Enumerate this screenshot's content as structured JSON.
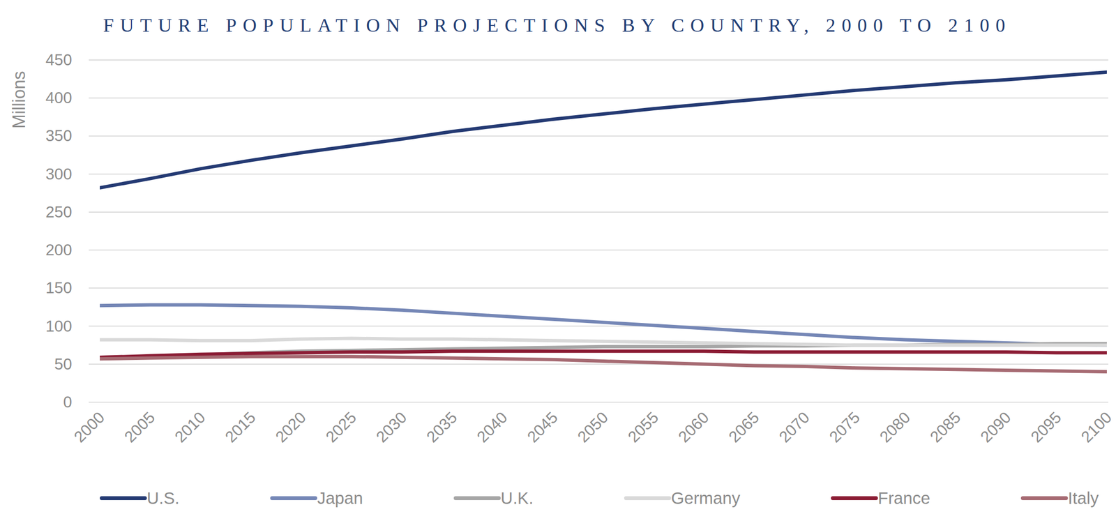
{
  "chart_data": {
    "type": "line",
    "title": "FUTURE POPULATION PROJECTIONS BY COUNTRY, 2000 TO 2100",
    "y_label": "Millions",
    "x": [
      2000,
      2005,
      2010,
      2015,
      2020,
      2025,
      2030,
      2035,
      2040,
      2045,
      2050,
      2055,
      2060,
      2065,
      2070,
      2075,
      2080,
      2085,
      2090,
      2095,
      2100
    ],
    "xlim": [
      2000,
      2100
    ],
    "xticks": [
      2000,
      2005,
      2010,
      2015,
      2020,
      2025,
      2030,
      2035,
      2040,
      2045,
      2050,
      2055,
      2060,
      2065,
      2070,
      2075,
      2080,
      2085,
      2090,
      2095,
      2100
    ],
    "ylim": [
      0,
      450
    ],
    "yticks": [
      0,
      50,
      100,
      150,
      200,
      250,
      300,
      350,
      400,
      450
    ],
    "grid": true,
    "legend": "bottom",
    "series": [
      {
        "name": "U.S.",
        "color": "#243a73",
        "values": [
          282,
          294,
          307,
          318,
          328,
          337,
          346,
          356,
          364,
          372,
          379,
          386,
          392,
          398,
          404,
          410,
          415,
          420,
          424,
          429,
          434
        ]
      },
      {
        "name": "Japan",
        "color": "#7587b6",
        "values": [
          127,
          128,
          128,
          127,
          126,
          124,
          121,
          117,
          113,
          109,
          105,
          101,
          97,
          93,
          89,
          85,
          82,
          80,
          78,
          76,
          75
        ]
      },
      {
        "name": "U.K.",
        "color": "#a6a6a6",
        "values": [
          59,
          60,
          62,
          65,
          67,
          68,
          69,
          70,
          71,
          72,
          73,
          73,
          73,
          74,
          74,
          75,
          75,
          76,
          76,
          77,
          77
        ]
      },
      {
        "name": "Germany",
        "color": "#d9d9d9",
        "values": [
          82,
          82,
          81,
          81,
          83,
          84,
          83,
          83,
          82,
          81,
          80,
          79,
          78,
          77,
          76,
          75,
          75,
          75,
          75,
          75,
          75
        ]
      },
      {
        "name": "France",
        "color": "#8b1c34",
        "values": [
          59,
          61,
          63,
          64,
          65,
          66,
          66,
          67,
          67,
          67,
          67,
          67,
          67,
          66,
          66,
          66,
          66,
          66,
          66,
          65,
          65
        ]
      },
      {
        "name": "Italy",
        "color": "#a66a72",
        "values": [
          57,
          58,
          59,
          60,
          60,
          60,
          59,
          58,
          57,
          56,
          54,
          52,
          50,
          48,
          47,
          45,
          44,
          43,
          42,
          41,
          40
        ]
      }
    ]
  }
}
